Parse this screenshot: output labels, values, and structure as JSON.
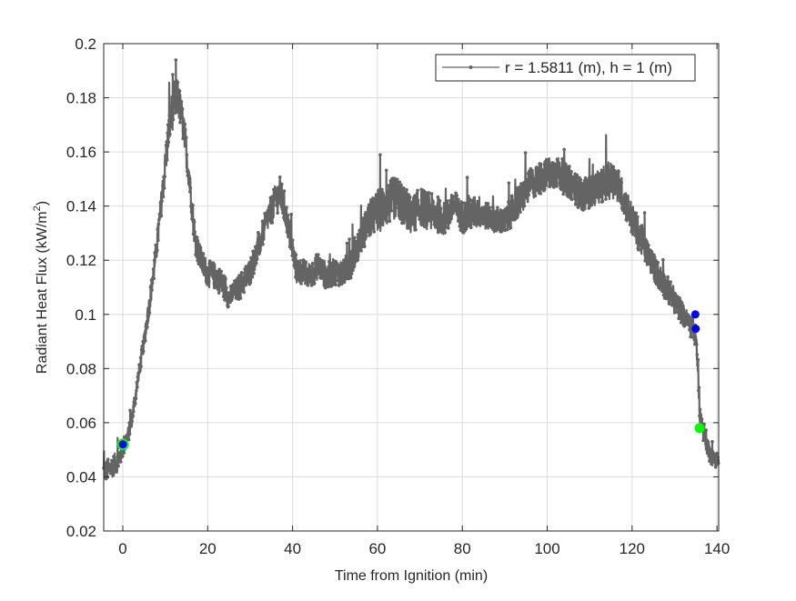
{
  "figure": {
    "background": "#ffffff",
    "axes_color": "#262626",
    "grid_color": "#dcdcdc"
  },
  "chart_data": {
    "type": "line",
    "title": "",
    "xlabel": "Time from Ignition (min)",
    "ylabel": "Radiant Heat Flux (kW/m",
    "ylabel_superscript": "2",
    "ylabel_suffix": ")",
    "xlim": [
      -4.5,
      140.4
    ],
    "ylim": [
      0.02,
      0.2
    ],
    "grid": true,
    "legend_position": "northeast",
    "x_ticks": [
      0,
      20,
      40,
      60,
      80,
      100,
      120,
      140
    ],
    "x_tick_labels": [
      "0",
      "20",
      "40",
      "60",
      "80",
      "100",
      "120",
      "140"
    ],
    "y_ticks": [
      0.02,
      0.04,
      0.06,
      0.08,
      0.1,
      0.12,
      0.14,
      0.16,
      0.18,
      0.2
    ],
    "y_tick_labels": [
      "0.02",
      "0.04",
      "0.06",
      "0.08",
      "0.1",
      "0.12",
      "0.14",
      "0.16",
      "0.18",
      "0.2"
    ],
    "series": [
      {
        "name": "r = 1.5811 (m), h = 1 (m)",
        "color": "#646464",
        "marker": ".",
        "description": "noisy measurement; values below are approximate running mean with noise band half-width",
        "x": [
          -4.5,
          -3,
          -1,
          0,
          1,
          2,
          3,
          4,
          5,
          6,
          7,
          8,
          9,
          10,
          11,
          12,
          13,
          14,
          15,
          16,
          17,
          18,
          19,
          20,
          22,
          24,
          25,
          26,
          28,
          30,
          32,
          34,
          36,
          37,
          38,
          39,
          40,
          41,
          42,
          44,
          46,
          48,
          50,
          52,
          54,
          56,
          58,
          60,
          62,
          64,
          66,
          68,
          70,
          72,
          74,
          76,
          78,
          80,
          82,
          84,
          86,
          88,
          90,
          92,
          94,
          96,
          98,
          100,
          102,
          104,
          106,
          108,
          110,
          112,
          114,
          116,
          118,
          120,
          122,
          124,
          126,
          128,
          130,
          132,
          134,
          135,
          135.5,
          136,
          137,
          138,
          139,
          140.4
        ],
        "y": [
          0.042,
          0.043,
          0.046,
          0.051,
          0.054,
          0.06,
          0.07,
          0.08,
          0.09,
          0.101,
          0.112,
          0.125,
          0.14,
          0.155,
          0.17,
          0.178,
          0.18,
          0.172,
          0.16,
          0.145,
          0.128,
          0.122,
          0.118,
          0.115,
          0.114,
          0.11,
          0.106,
          0.108,
          0.111,
          0.116,
          0.125,
          0.135,
          0.142,
          0.145,
          0.14,
          0.132,
          0.123,
          0.116,
          0.116,
          0.114,
          0.118,
          0.114,
          0.116,
          0.115,
          0.12,
          0.128,
          0.135,
          0.138,
          0.14,
          0.143,
          0.141,
          0.136,
          0.14,
          0.138,
          0.137,
          0.135,
          0.14,
          0.136,
          0.137,
          0.138,
          0.136,
          0.135,
          0.134,
          0.139,
          0.143,
          0.148,
          0.15,
          0.152,
          0.153,
          0.15,
          0.148,
          0.144,
          0.145,
          0.147,
          0.149,
          0.15,
          0.143,
          0.135,
          0.128,
          0.121,
          0.115,
          0.11,
          0.105,
          0.1,
          0.095,
          0.092,
          0.08,
          0.062,
          0.056,
          0.05,
          0.047,
          0.046
        ],
        "noise": [
          0.004,
          0.004,
          0.004,
          0.004,
          0.003,
          0.003,
          0.003,
          0.003,
          0.003,
          0.004,
          0.004,
          0.004,
          0.005,
          0.006,
          0.007,
          0.008,
          0.007,
          0.006,
          0.006,
          0.005,
          0.005,
          0.005,
          0.005,
          0.005,
          0.005,
          0.005,
          0.004,
          0.004,
          0.005,
          0.005,
          0.005,
          0.005,
          0.006,
          0.006,
          0.006,
          0.005,
          0.005,
          0.005,
          0.005,
          0.005,
          0.005,
          0.005,
          0.005,
          0.005,
          0.006,
          0.006,
          0.007,
          0.008,
          0.008,
          0.008,
          0.008,
          0.007,
          0.007,
          0.007,
          0.007,
          0.006,
          0.006,
          0.006,
          0.006,
          0.006,
          0.005,
          0.005,
          0.005,
          0.006,
          0.006,
          0.006,
          0.006,
          0.006,
          0.006,
          0.006,
          0.006,
          0.006,
          0.006,
          0.006,
          0.007,
          0.007,
          0.006,
          0.006,
          0.006,
          0.005,
          0.005,
          0.005,
          0.005,
          0.004,
          0.004,
          0.004,
          0.003,
          0.004,
          0.004,
          0.004,
          0.003,
          0.003
        ],
        "peak": {
          "x": 12.5,
          "y": 0.194
        }
      }
    ],
    "annotations": [
      {
        "type": "marker",
        "shape": "circle",
        "fill": "#0000ff",
        "edge": "#00ff00",
        "x": 0,
        "y": 0.052,
        "size": "medium"
      },
      {
        "type": "marker",
        "shape": "circle",
        "fill": "#0000ff",
        "edge": "#0000ff",
        "x": 134.9,
        "y": 0.1,
        "size": "small"
      },
      {
        "type": "marker",
        "shape": "circle",
        "fill": "#0000ff",
        "edge": "#0000ff",
        "x": 135.0,
        "y": 0.0947,
        "size": "small"
      },
      {
        "type": "marker",
        "shape": "circle",
        "fill": "#00ff00",
        "edge": "#00ff00",
        "x": 135.9,
        "y": 0.058,
        "size": "medium"
      }
    ]
  }
}
